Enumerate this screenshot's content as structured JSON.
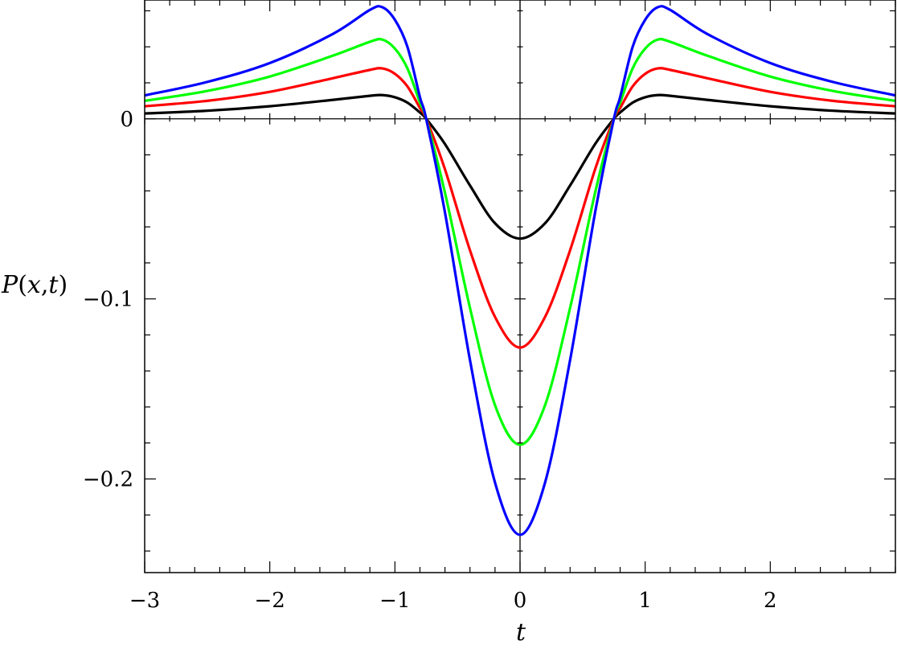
{
  "chart_data": {
    "type": "line",
    "title": "",
    "xlabel": "t",
    "ylabel_parts": {
      "p": "P",
      "open": "(",
      "x": "x",
      "comma": ",",
      "t": "t",
      "close": ")"
    },
    "xlim": [
      -3,
      3
    ],
    "ylim": [
      -0.252,
      0.066
    ],
    "x_ticks": [
      {
        "value": -3,
        "label": "−3"
      },
      {
        "value": -2,
        "label": "−2"
      },
      {
        "value": -1,
        "label": "−1"
      },
      {
        "value": 0,
        "label": "0"
      },
      {
        "value": 1,
        "label": "1"
      },
      {
        "value": 2,
        "label": "2"
      }
    ],
    "y_ticks": [
      {
        "value": 0,
        "label": "0"
      },
      {
        "value": -0.1,
        "label": "−0.1"
      },
      {
        "value": -0.2,
        "label": "−0.2"
      }
    ],
    "x_minor_step": 0.2,
    "y_minor_step": 0.02,
    "zero_lines": true,
    "grid": false,
    "legend": "none",
    "series": [
      {
        "color": "#000000",
        "x": [
          -3,
          -2.5,
          -2,
          -1.5,
          -1.2,
          -1.1,
          -1,
          -0.9,
          -0.8,
          -0.75,
          -0.6,
          -0.4,
          -0.2,
          0,
          0.2,
          0.4,
          0.6,
          0.75,
          0.8,
          0.9,
          1,
          1.1,
          1.2,
          1.5,
          2,
          2.5,
          3
        ],
        "y": [
          0.003,
          0.0045,
          0.007,
          0.0105,
          0.0128,
          0.0132,
          0.012,
          0.009,
          0.0035,
          0,
          -0.014,
          -0.037,
          -0.058,
          -0.0665,
          -0.058,
          -0.037,
          -0.014,
          0,
          0.0035,
          0.009,
          0.012,
          0.0132,
          0.0128,
          0.0105,
          0.007,
          0.0045,
          0.003
        ]
      },
      {
        "color": "#ff0000",
        "x": [
          -3,
          -2.5,
          -2,
          -1.5,
          -1.2,
          -1.1,
          -1,
          -0.9,
          -0.8,
          -0.75,
          -0.6,
          -0.4,
          -0.2,
          0,
          0.2,
          0.4,
          0.6,
          0.75,
          0.8,
          0.9,
          1,
          1.1,
          1.2,
          1.5,
          2,
          2.5,
          3
        ],
        "y": [
          0.007,
          0.01,
          0.015,
          0.0225,
          0.0272,
          0.028,
          0.025,
          0.018,
          0.006,
          0,
          -0.028,
          -0.073,
          -0.11,
          -0.127,
          -0.11,
          -0.073,
          -0.028,
          0,
          0.006,
          0.018,
          0.025,
          0.028,
          0.0272,
          0.0225,
          0.015,
          0.01,
          0.007
        ]
      },
      {
        "color": "#00ff00",
        "x": [
          -3,
          -2.5,
          -2,
          -1.5,
          -1.2,
          -1.1,
          -1,
          -0.9,
          -0.8,
          -0.75,
          -0.6,
          -0.4,
          -0.2,
          0,
          0.2,
          0.4,
          0.6,
          0.75,
          0.8,
          0.9,
          1,
          1.1,
          1.2,
          1.5,
          2,
          2.5,
          3
        ],
        "y": [
          0.01,
          0.0155,
          0.0235,
          0.035,
          0.0428,
          0.044,
          0.039,
          0.028,
          0.009,
          0,
          -0.041,
          -0.105,
          -0.159,
          -0.181,
          -0.159,
          -0.105,
          -0.041,
          0,
          0.009,
          0.028,
          0.039,
          0.044,
          0.0428,
          0.035,
          0.0235,
          0.0155,
          0.01
        ]
      },
      {
        "color": "#0000ff",
        "x": [
          -3,
          -2.5,
          -2,
          -1.5,
          -1.2,
          -1.1,
          -1,
          -0.9,
          -0.8,
          -0.75,
          -0.6,
          -0.4,
          -0.2,
          0,
          0.2,
          0.4,
          0.6,
          0.75,
          0.8,
          0.9,
          1,
          1.1,
          1.2,
          1.5,
          2,
          2.5,
          3
        ],
        "y": [
          0.013,
          0.0205,
          0.031,
          0.047,
          0.0605,
          0.062,
          0.055,
          0.04,
          0.012,
          0,
          -0.052,
          -0.134,
          -0.202,
          -0.231,
          -0.202,
          -0.134,
          -0.052,
          0,
          0.012,
          0.04,
          0.055,
          0.062,
          0.0605,
          0.047,
          0.031,
          0.0205,
          0.013
        ]
      }
    ]
  }
}
